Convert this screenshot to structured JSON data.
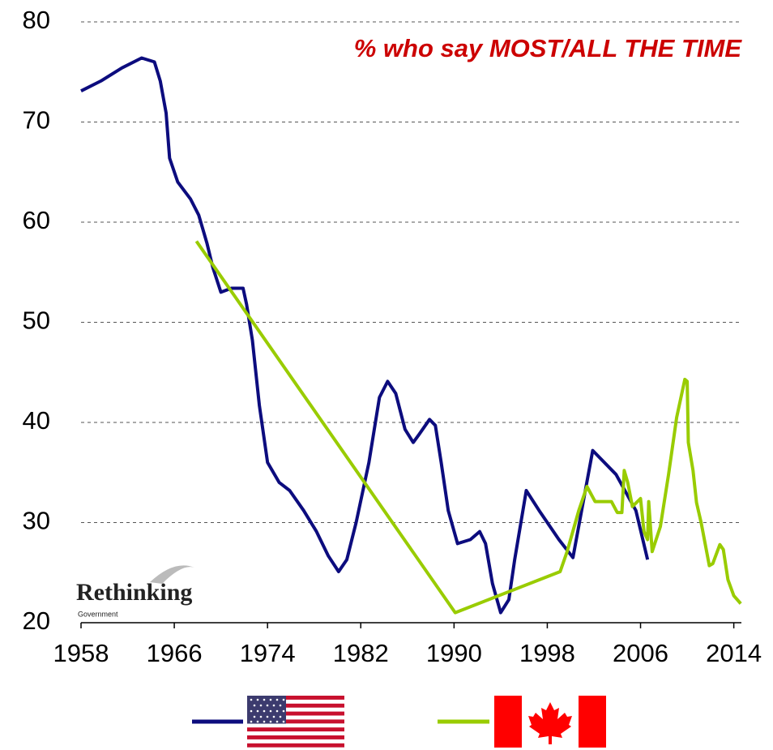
{
  "chart_data": {
    "type": "line",
    "title": "% who say MOST/ALL THE TIME",
    "logo": {
      "name": "Rethinking",
      "sub": "Government"
    },
    "xlim": [
      1958,
      2015
    ],
    "xticks": [
      1958,
      1966,
      1974,
      1982,
      1990,
      1998,
      2006,
      2014
    ],
    "ylim": [
      20,
      80
    ],
    "yticks": [
      20,
      30,
      40,
      50,
      60,
      70,
      80
    ],
    "grid": true,
    "series": [
      {
        "color": "#0c0c7e",
        "x": [
          1958,
          1959.7,
          1961.5,
          1963.2,
          1964.3,
          1964.8,
          1965.3,
          1965.6,
          1966.3,
          1967.4,
          1968.1,
          1968.8,
          1969.3,
          1970,
          1970.9,
          1971.9,
          1972.2,
          1972.7,
          1973.3,
          1974,
          1975,
          1975.9,
          1977.1,
          1978.2,
          1979.2,
          1980.1,
          1980.8,
          1981.6,
          1982.7,
          1983.6,
          1984.3,
          1985,
          1985.8,
          1986.5,
          1987,
          1987.9,
          1988.4,
          1988.9,
          1989.5,
          1990.3,
          1991.4,
          1992.2,
          1992.7,
          1993.3,
          1994,
          1994.7,
          1995.2,
          1996.2,
          1997.3,
          1999,
          2000.2,
          2001.9,
          2003.9,
          2005.6,
          2006.6
        ],
        "values": [
          73.1,
          74.1,
          75.4,
          76.4,
          76.0,
          74.1,
          70.9,
          66.4,
          64,
          62.3,
          60.7,
          57.9,
          55.5,
          53,
          53.4,
          53.4,
          51.8,
          48.2,
          41.7,
          36,
          34,
          33.2,
          31.2,
          29.1,
          26.7,
          25.1,
          26.3,
          30,
          36,
          42.5,
          44.1,
          42.9,
          39.3,
          38,
          38.8,
          40.3,
          39.7,
          36,
          31.2,
          27.9,
          28.3,
          29.1,
          27.9,
          23.9,
          21,
          22.3,
          26.3,
          33.2,
          31.2,
          28.3,
          26.5,
          37.2,
          34.8,
          31.2,
          26.3
        ]
      },
      {
        "color": "#99cc00",
        "x": [
          1967.9,
          1990.1,
          1999.1,
          1999.7,
          2000.7,
          2001.4,
          2002.1,
          2003.5,
          2004,
          2004.4,
          2004.6,
          2004.9,
          2005.3,
          2006,
          2006.3,
          2006.6,
          2006.7,
          2007,
          2007.7,
          2008.4,
          2009.1,
          2009.8,
          2010,
          2010.1,
          2010.5,
          2010.8,
          2011.2,
          2011.9,
          2012.2,
          2012.8,
          2013.1,
          2013.5,
          2014,
          2014.6
        ],
        "values": [
          58.1,
          21,
          25.1,
          27.1,
          31.2,
          33.6,
          32.1,
          32.1,
          31,
          31,
          35.2,
          34,
          31.6,
          32.4,
          29.1,
          28.3,
          32.1,
          27.1,
          29.6,
          34.8,
          40.5,
          44.3,
          44.1,
          38,
          35.2,
          32,
          30,
          25.7,
          25.9,
          27.8,
          27.3,
          24.3,
          22.7,
          21.9
        ]
      }
    ]
  }
}
